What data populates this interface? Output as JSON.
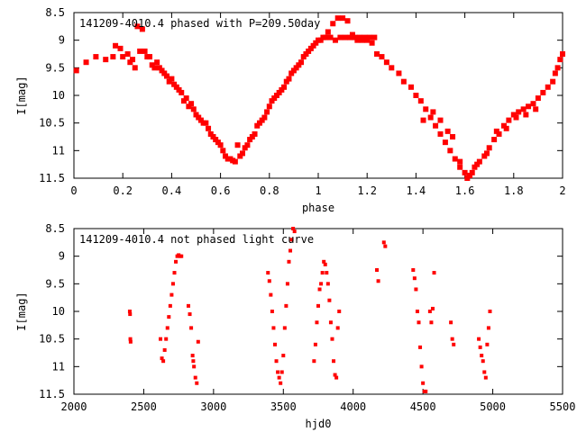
{
  "colors": {
    "points": "#ff0000",
    "axes": "#000000",
    "background": "#ffffff"
  },
  "chart_data": [
    {
      "type": "scatter",
      "title": "141209-4010.4 phased with P=209.50day",
      "xlabel": "phase",
      "ylabel": "I[mag]",
      "xlim": [
        0,
        2
      ],
      "ylim": [
        11.5,
        8.5
      ],
      "y_inverted": true,
      "grid": false,
      "x_ticks": [
        "0",
        "0.2",
        "0.4",
        "0.6",
        "0.8",
        "1",
        "1.2",
        "1.4",
        "1.6",
        "1.8",
        "2"
      ],
      "y_ticks": [
        "8.5",
        "9",
        "9.5",
        "10",
        "10.5",
        "11",
        "11.5"
      ],
      "points": [
        [
          0.01,
          9.55
        ],
        [
          0.05,
          9.4
        ],
        [
          0.09,
          9.3
        ],
        [
          0.13,
          9.35
        ],
        [
          0.16,
          9.3
        ],
        [
          0.17,
          9.1
        ],
        [
          0.19,
          9.15
        ],
        [
          0.2,
          9.3
        ],
        [
          0.22,
          9.25
        ],
        [
          0.24,
          9.35
        ],
        [
          0.26,
          8.75
        ],
        [
          0.28,
          8.8
        ],
        [
          0.27,
          9.2
        ],
        [
          0.3,
          9.3
        ],
        [
          0.32,
          9.45
        ],
        [
          0.34,
          9.4
        ],
        [
          0.36,
          9.55
        ],
        [
          0.38,
          9.65
        ],
        [
          0.4,
          9.7
        ],
        [
          0.42,
          9.85
        ],
        [
          0.44,
          9.95
        ],
        [
          0.45,
          10.1
        ],
        [
          0.47,
          10.2
        ],
        [
          0.49,
          10.25
        ],
        [
          0.5,
          10.35
        ],
        [
          0.52,
          10.45
        ],
        [
          0.54,
          10.5
        ],
        [
          0.55,
          10.6
        ],
        [
          0.56,
          10.7
        ],
        [
          0.58,
          10.8
        ],
        [
          0.6,
          10.9
        ],
        [
          0.61,
          11.0
        ],
        [
          0.62,
          11.1
        ],
        [
          0.64,
          11.15
        ],
        [
          0.66,
          11.2
        ],
        [
          0.68,
          11.1
        ],
        [
          0.67,
          10.9
        ],
        [
          0.7,
          10.95
        ],
        [
          0.72,
          10.8
        ],
        [
          0.74,
          10.7
        ],
        [
          0.75,
          10.55
        ],
        [
          0.77,
          10.45
        ],
        [
          0.79,
          10.3
        ],
        [
          0.8,
          10.2
        ],
        [
          0.82,
          10.05
        ],
        [
          0.84,
          9.95
        ],
        [
          0.86,
          9.85
        ],
        [
          0.88,
          9.7
        ],
        [
          0.9,
          9.55
        ],
        [
          0.92,
          9.45
        ],
        [
          0.94,
          9.3
        ],
        [
          0.96,
          9.2
        ],
        [
          0.98,
          9.1
        ],
        [
          1.0,
          9.0
        ],
        [
          1.02,
          8.95
        ],
        [
          1.04,
          8.85
        ],
        [
          1.06,
          8.7
        ],
        [
          1.08,
          8.6
        ],
        [
          1.1,
          8.6
        ],
        [
          1.12,
          8.65
        ],
        [
          1.14,
          8.9
        ],
        [
          1.16,
          9.0
        ],
        [
          1.18,
          9.0
        ],
        [
          1.2,
          9.0
        ],
        [
          1.22,
          9.05
        ],
        [
          1.24,
          9.25
        ],
        [
          1.26,
          9.3
        ],
        [
          1.28,
          9.4
        ],
        [
          1.3,
          9.5
        ],
        [
          1.33,
          9.6
        ],
        [
          1.35,
          9.75
        ],
        [
          1.38,
          9.85
        ],
        [
          1.4,
          10.0
        ],
        [
          1.42,
          10.1
        ],
        [
          1.44,
          10.25
        ],
        [
          1.46,
          10.4
        ],
        [
          1.48,
          10.55
        ],
        [
          1.5,
          10.7
        ],
        [
          1.52,
          10.85
        ],
        [
          1.54,
          11.0
        ],
        [
          1.56,
          11.15
        ],
        [
          1.58,
          11.3
        ],
        [
          1.6,
          11.4
        ],
        [
          1.62,
          11.45
        ],
        [
          1.64,
          11.3
        ],
        [
          1.66,
          11.2
        ],
        [
          1.68,
          11.1
        ],
        [
          1.7,
          10.95
        ],
        [
          1.72,
          10.8
        ],
        [
          1.74,
          10.7
        ],
        [
          1.76,
          10.55
        ],
        [
          1.78,
          10.45
        ],
        [
          1.8,
          10.35
        ],
        [
          1.82,
          10.3
        ],
        [
          1.84,
          10.25
        ],
        [
          1.86,
          10.2
        ],
        [
          1.88,
          10.15
        ],
        [
          1.9,
          10.05
        ],
        [
          1.92,
          9.95
        ],
        [
          1.94,
          9.85
        ],
        [
          1.96,
          9.75
        ],
        [
          1.97,
          9.6
        ],
        [
          1.98,
          9.5
        ],
        [
          1.99,
          9.35
        ],
        [
          2.0,
          9.25
        ],
        [
          1.43,
          10.45
        ],
        [
          1.47,
          10.3
        ],
        [
          1.5,
          10.45
        ],
        [
          1.53,
          10.65
        ],
        [
          1.55,
          10.75
        ],
        [
          1.58,
          11.2
        ],
        [
          1.61,
          11.5
        ],
        [
          1.63,
          11.4
        ],
        [
          1.65,
          11.25
        ],
        [
          1.69,
          11.05
        ],
        [
          1.73,
          10.65
        ],
        [
          1.77,
          10.6
        ],
        [
          1.81,
          10.4
        ],
        [
          1.85,
          10.35
        ],
        [
          1.89,
          10.25
        ],
        [
          0.23,
          9.4
        ],
        [
          0.25,
          9.5
        ],
        [
          0.29,
          9.2
        ],
        [
          0.31,
          9.3
        ],
        [
          0.33,
          9.5
        ],
        [
          0.35,
          9.5
        ],
        [
          0.37,
          9.6
        ],
        [
          0.39,
          9.75
        ],
        [
          0.41,
          9.8
        ],
        [
          0.43,
          9.9
        ],
        [
          0.46,
          10.05
        ],
        [
          0.48,
          10.15
        ],
        [
          0.51,
          10.4
        ],
        [
          0.53,
          10.5
        ],
        [
          0.57,
          10.75
        ],
        [
          0.59,
          10.85
        ],
        [
          0.63,
          11.15
        ],
        [
          0.65,
          11.18
        ],
        [
          0.69,
          11.05
        ],
        [
          0.71,
          10.9
        ],
        [
          0.73,
          10.75
        ],
        [
          0.76,
          10.5
        ],
        [
          0.78,
          10.4
        ],
        [
          0.81,
          10.1
        ],
        [
          0.83,
          10.0
        ],
        [
          0.85,
          9.9
        ],
        [
          0.87,
          9.75
        ],
        [
          0.89,
          9.6
        ],
        [
          0.91,
          9.5
        ],
        [
          0.93,
          9.4
        ],
        [
          0.95,
          9.25
        ],
        [
          0.97,
          9.15
        ],
        [
          0.99,
          9.05
        ],
        [
          1.01,
          9.0
        ],
        [
          1.03,
          8.95
        ],
        [
          1.05,
          8.95
        ],
        [
          1.07,
          9.0
        ],
        [
          1.09,
          8.95
        ],
        [
          1.11,
          8.95
        ],
        [
          1.13,
          8.95
        ],
        [
          1.15,
          8.95
        ],
        [
          1.17,
          8.95
        ],
        [
          1.19,
          8.95
        ],
        [
          1.21,
          8.95
        ],
        [
          1.23,
          8.95
        ]
      ]
    },
    {
      "type": "scatter",
      "title": "141209-4010.4 not phased light curve",
      "xlabel": "hjd0",
      "ylabel": "I[mag]",
      "xlim": [
        2000,
        5500
      ],
      "ylim": [
        11.5,
        8.5
      ],
      "y_inverted": true,
      "grid": false,
      "x_ticks": [
        "2000",
        "2500",
        "3000",
        "3500",
        "4000",
        "4500",
        "5000",
        "5500"
      ],
      "y_ticks": [
        "8.5",
        "9",
        "9.5",
        "10",
        "10.5",
        "11",
        "11.5"
      ],
      "points": [
        [
          2400,
          10.0
        ],
        [
          2402,
          10.05
        ],
        [
          2404,
          10.5
        ],
        [
          2406,
          10.55
        ],
        [
          2620,
          10.5
        ],
        [
          2630,
          10.85
        ],
        [
          2640,
          10.9
        ],
        [
          2650,
          10.7
        ],
        [
          2660,
          10.5
        ],
        [
          2670,
          10.3
        ],
        [
          2680,
          10.1
        ],
        [
          2690,
          9.9
        ],
        [
          2700,
          9.7
        ],
        [
          2710,
          9.5
        ],
        [
          2720,
          9.3
        ],
        [
          2730,
          9.1
        ],
        [
          2740,
          9.0
        ],
        [
          2750,
          8.98
        ],
        [
          2760,
          9.0
        ],
        [
          2770,
          9.0
        ],
        [
          2820,
          9.9
        ],
        [
          2830,
          10.05
        ],
        [
          2840,
          10.3
        ],
        [
          2850,
          10.8
        ],
        [
          2855,
          10.9
        ],
        [
          2860,
          11.0
        ],
        [
          2870,
          11.2
        ],
        [
          2880,
          11.3
        ],
        [
          2890,
          10.55
        ],
        [
          3390,
          9.3
        ],
        [
          3400,
          9.45
        ],
        [
          3410,
          9.7
        ],
        [
          3420,
          10.0
        ],
        [
          3430,
          10.3
        ],
        [
          3440,
          10.6
        ],
        [
          3450,
          10.9
        ],
        [
          3460,
          11.1
        ],
        [
          3470,
          11.2
        ],
        [
          3480,
          11.3
        ],
        [
          3490,
          11.1
        ],
        [
          3500,
          10.8
        ],
        [
          3510,
          10.3
        ],
        [
          3520,
          9.9
        ],
        [
          3530,
          9.5
        ],
        [
          3540,
          9.1
        ],
        [
          3550,
          8.9
        ],
        [
          3560,
          8.7
        ],
        [
          3570,
          8.5
        ],
        [
          3580,
          8.55
        ],
        [
          3720,
          10.9
        ],
        [
          3730,
          10.6
        ],
        [
          3740,
          10.2
        ],
        [
          3750,
          9.9
        ],
        [
          3760,
          9.6
        ],
        [
          3770,
          9.5
        ],
        [
          3780,
          9.3
        ],
        [
          3790,
          9.1
        ],
        [
          3800,
          9.15
        ],
        [
          3810,
          9.3
        ],
        [
          3820,
          9.5
        ],
        [
          3830,
          9.8
        ],
        [
          3840,
          10.2
        ],
        [
          3850,
          10.5
        ],
        [
          3860,
          10.9
        ],
        [
          3870,
          11.15
        ],
        [
          3880,
          11.2
        ],
        [
          3890,
          10.3
        ],
        [
          3900,
          10.0
        ],
        [
          4170,
          9.25
        ],
        [
          4180,
          9.45
        ],
        [
          4220,
          8.75
        ],
        [
          4230,
          8.82
        ],
        [
          4430,
          9.25
        ],
        [
          4440,
          9.4
        ],
        [
          4450,
          9.6
        ],
        [
          4460,
          10.0
        ],
        [
          4470,
          10.2
        ],
        [
          4480,
          10.65
        ],
        [
          4490,
          11.0
        ],
        [
          4500,
          11.3
        ],
        [
          4510,
          11.45
        ],
        [
          4520,
          11.45
        ],
        [
          4550,
          10.0
        ],
        [
          4560,
          10.2
        ],
        [
          4570,
          9.95
        ],
        [
          4580,
          9.3
        ],
        [
          4700,
          10.2
        ],
        [
          4710,
          10.5
        ],
        [
          4720,
          10.6
        ],
        [
          4900,
          10.5
        ],
        [
          4910,
          10.65
        ],
        [
          4920,
          10.8
        ],
        [
          4930,
          10.9
        ],
        [
          4940,
          11.1
        ],
        [
          4950,
          11.2
        ],
        [
          4960,
          10.6
        ],
        [
          4970,
          10.3
        ],
        [
          4980,
          10.0
        ]
      ]
    }
  ]
}
